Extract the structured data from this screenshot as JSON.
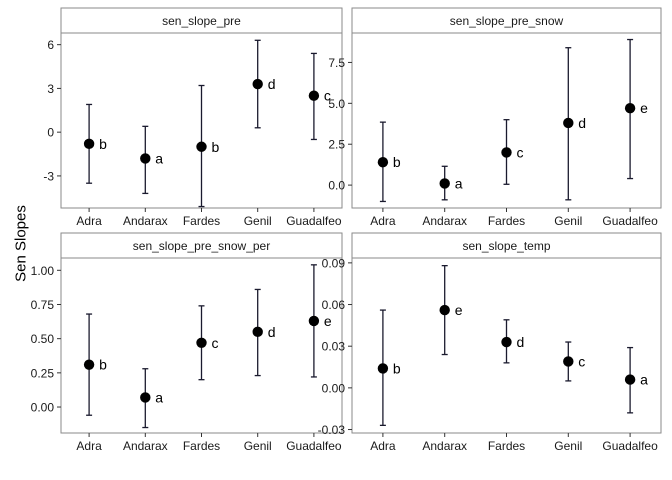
{
  "figure": {
    "ylabel": "Sen Slopes",
    "xlabel": ""
  },
  "chart_data": [
    {
      "type": "scatter",
      "title": "sen_slope_pre",
      "xlabel": "",
      "ylabel": "Sen Slopes",
      "categories": [
        "Adra",
        "Andarax",
        "Fardes",
        "Genil",
        "Guadalfeo"
      ],
      "values": [
        -0.8,
        -1.8,
        -1.0,
        3.3,
        2.5
      ],
      "lower": [
        -3.5,
        -4.2,
        -5.1,
        0.3,
        -0.5
      ],
      "upper": [
        1.9,
        0.4,
        3.2,
        6.3,
        5.4
      ],
      "groups": [
        "b",
        "a",
        "b",
        "d",
        "c"
      ],
      "yticks": [
        -3,
        0,
        3,
        6
      ],
      "ylim": [
        -5.2,
        6.8
      ],
      "grid": false
    },
    {
      "type": "scatter",
      "title": "sen_slope_pre_snow",
      "xlabel": "",
      "ylabel": "Sen Slopes",
      "categories": [
        "Adra",
        "Andarax",
        "Fardes",
        "Genil",
        "Guadalfeo"
      ],
      "values": [
        1.4,
        0.1,
        2.0,
        3.8,
        4.7
      ],
      "lower": [
        -1.0,
        -0.9,
        0.05,
        -0.9,
        0.4
      ],
      "upper": [
        3.85,
        1.15,
        4.0,
        8.4,
        8.9
      ],
      "groups": [
        "b",
        "a",
        "c",
        "d",
        "e"
      ],
      "yticks": [
        0.0,
        2.5,
        5.0,
        7.5
      ],
      "ytick_labels": [
        "0.0",
        "2.5",
        "5.0",
        "7.5"
      ],
      "ylim": [
        -1.4,
        9.3
      ],
      "grid": false
    },
    {
      "type": "scatter",
      "title": "sen_slope_pre_snow_per",
      "xlabel": "",
      "ylabel": "Sen Slopes",
      "categories": [
        "Adra",
        "Andarax",
        "Fardes",
        "Genil",
        "Guadalfeo"
      ],
      "values": [
        0.31,
        0.07,
        0.47,
        0.55,
        0.63
      ],
      "lower": [
        -0.06,
        -0.15,
        0.2,
        0.23,
        0.22
      ],
      "upper": [
        0.68,
        0.28,
        0.74,
        0.86,
        1.04
      ],
      "groups": [
        "b",
        "a",
        "c",
        "d",
        "e"
      ],
      "yticks": [
        0.0,
        0.25,
        0.5,
        0.75,
        1.0
      ],
      "ytick_labels": [
        "0.00",
        "0.25",
        "0.50",
        "0.75",
        "1.00"
      ],
      "ylim": [
        -0.19,
        1.09
      ],
      "grid": false
    },
    {
      "type": "scatter",
      "title": "sen_slope_temp",
      "xlabel": "",
      "ylabel": "Sen Slopes",
      "categories": [
        "Adra",
        "Andarax",
        "Fardes",
        "Genil",
        "Guadalfeo"
      ],
      "values": [
        0.014,
        0.056,
        0.033,
        0.019,
        0.006
      ],
      "lower": [
        -0.027,
        0.024,
        0.018,
        0.005,
        -0.018
      ],
      "upper": [
        0.056,
        0.088,
        0.049,
        0.033,
        0.029
      ],
      "groups": [
        "b",
        "e",
        "d",
        "c",
        "a"
      ],
      "yticks": [
        -0.03,
        0.0,
        0.03,
        0.06,
        0.09
      ],
      "ytick_labels": [
        "-0.03",
        "0.00",
        "0.03",
        "0.06",
        "0.09"
      ],
      "ylim": [
        -0.0325,
        0.0935
      ],
      "grid": false
    }
  ]
}
